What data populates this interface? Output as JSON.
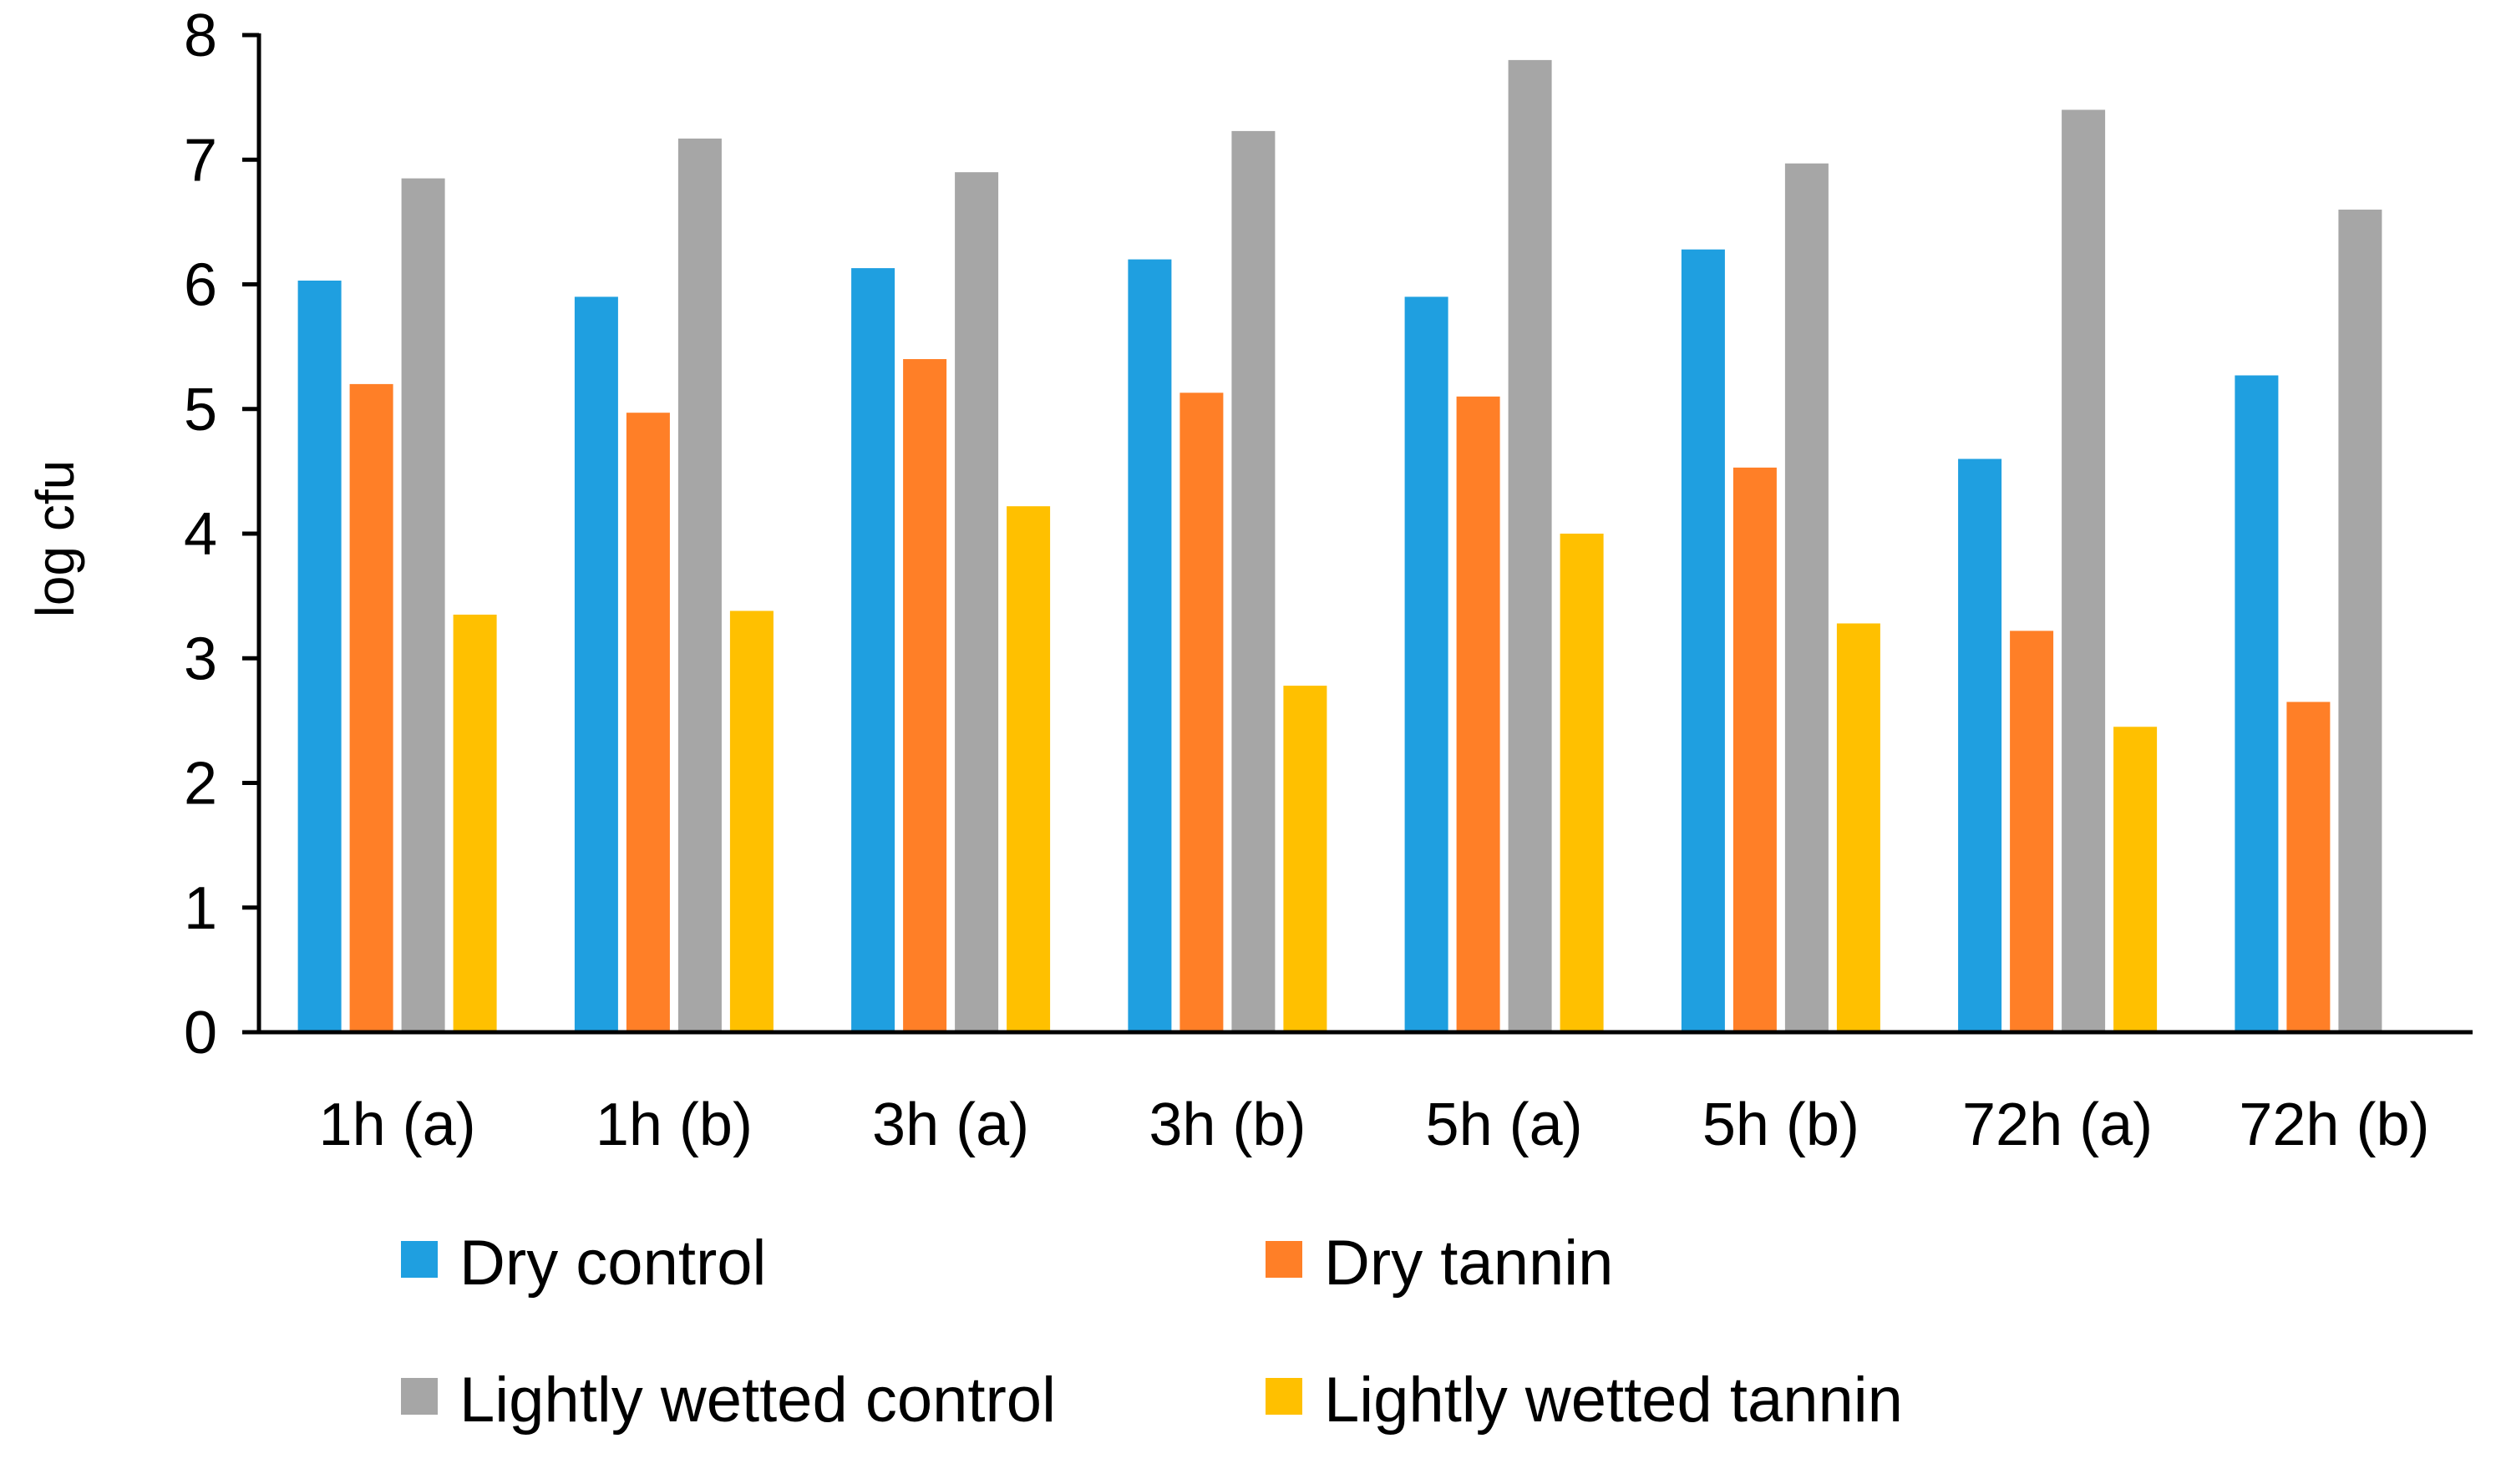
{
  "chart_data": {
    "type": "bar",
    "title": "",
    "xlabel": "",
    "ylabel": "log cfu",
    "ylim": [
      0,
      8
    ],
    "yticks": [
      0,
      1,
      2,
      3,
      4,
      5,
      6,
      7,
      8
    ],
    "grid": false,
    "legend_position": "bottom",
    "categories": [
      "1h (a)",
      "1h (b)",
      "3h (a)",
      "3h (b)",
      "5h (a)",
      "5h (b)",
      "72h (a)",
      "72h (b)"
    ],
    "series": [
      {
        "name": "Dry control",
        "color": "#1f9fe0",
        "values": [
          6.03,
          5.9,
          6.13,
          6.2,
          5.9,
          6.28,
          4.6,
          5.27
        ]
      },
      {
        "name": "Dry tannin",
        "color": "#ff7f27",
        "values": [
          5.2,
          4.97,
          5.4,
          5.13,
          5.1,
          4.53,
          3.22,
          2.65
        ]
      },
      {
        "name": "Lightly wetted control",
        "color": "#a6a6a6",
        "values": [
          6.85,
          7.17,
          6.9,
          7.23,
          7.8,
          6.97,
          7.4,
          6.6
        ]
      },
      {
        "name": "Lightly wetted tannin",
        "color": "#ffc000",
        "values": [
          3.35,
          3.38,
          4.22,
          2.78,
          4.0,
          3.28,
          2.45,
          null
        ]
      }
    ]
  }
}
